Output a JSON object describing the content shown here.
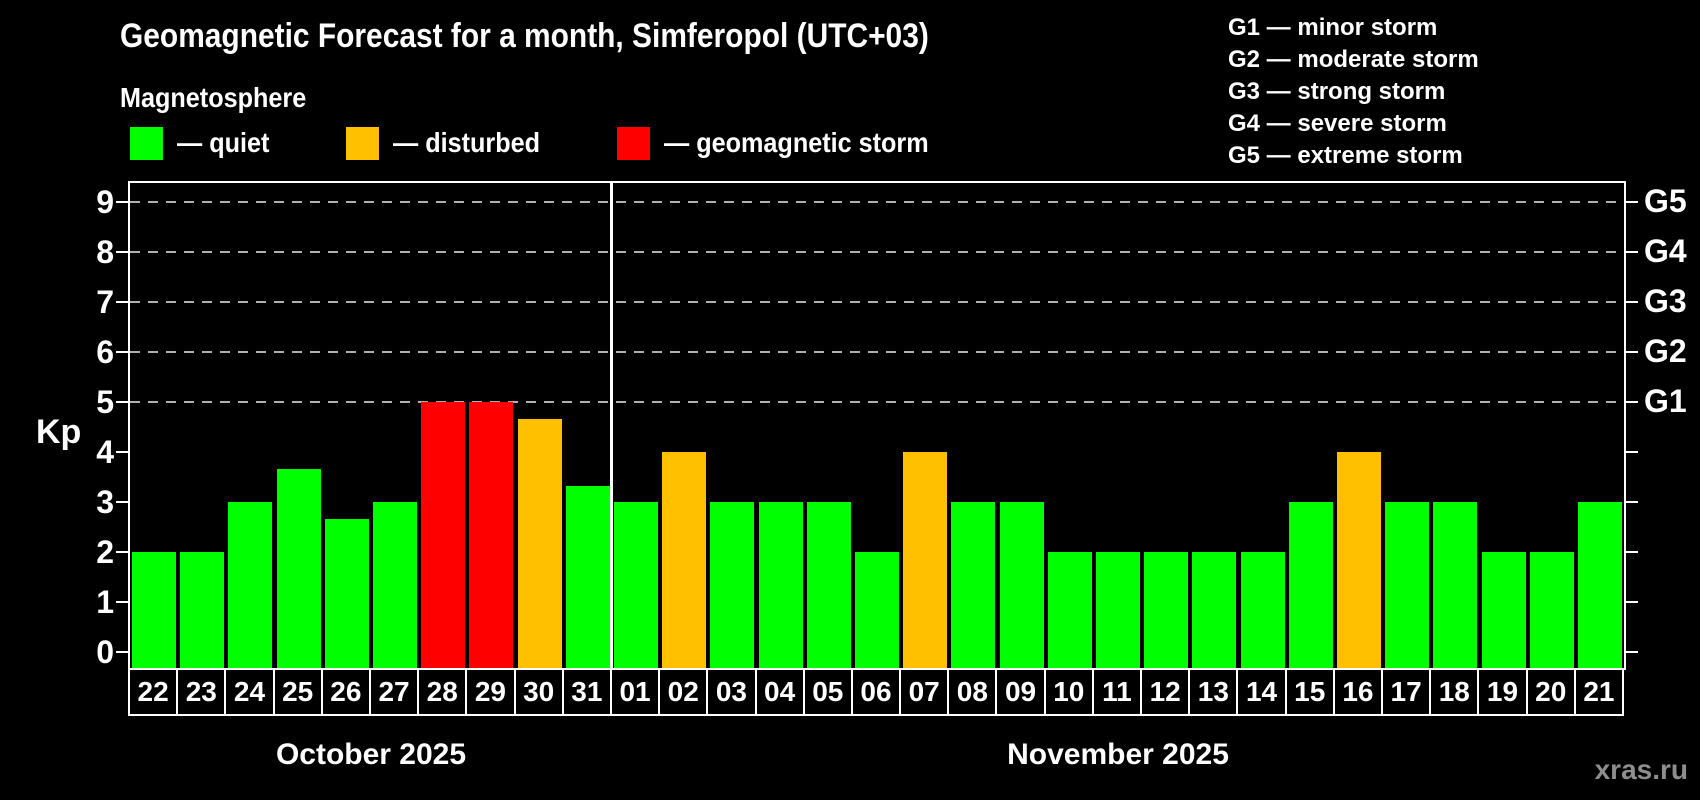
{
  "title": "Geomagnetic Forecast for a month, Simferopol (UTC+03)",
  "subtitle": "Magnetosphere",
  "status_legend": [
    {
      "key": "quiet",
      "label": "— quiet"
    },
    {
      "key": "disturbed",
      "label": "— disturbed"
    },
    {
      "key": "storm",
      "label": "— geomagnetic storm"
    }
  ],
  "g_legend": [
    "G1 — minor storm",
    "G2 — moderate storm",
    "G3 — strong storm",
    "G4 — severe storm",
    "G5 — extreme storm"
  ],
  "watermark": "xras.ru",
  "colors": {
    "background": "#000000",
    "quiet": "#00ff00",
    "disturbed": "#ffc000",
    "storm": "#ff0000",
    "grid": "#b0b0b0",
    "axis": "#ffffff",
    "watermark": "#8e8e8e"
  },
  "chart_data": {
    "type": "bar",
    "title": "Geomagnetic Forecast for a month, Simferopol (UTC+03)",
    "xlabel": "",
    "ylabel": "Kp",
    "ylim": [
      0,
      9.4
    ],
    "grid": "dashed horizontal at Kp 5-9",
    "y_ticks": [
      0,
      1,
      2,
      3,
      4,
      5,
      6,
      7,
      8,
      9
    ],
    "gridlines_at": [
      5,
      6,
      7,
      8,
      9
    ],
    "g_scale": [
      {
        "kp": 5,
        "label": "G1"
      },
      {
        "kp": 6,
        "label": "G2"
      },
      {
        "kp": 7,
        "label": "G3"
      },
      {
        "kp": 8,
        "label": "G4"
      },
      {
        "kp": 9,
        "label": "G5"
      }
    ],
    "categories": [
      "22",
      "23",
      "24",
      "25",
      "26",
      "27",
      "28",
      "29",
      "30",
      "31",
      "01",
      "02",
      "03",
      "04",
      "05",
      "06",
      "07",
      "08",
      "09",
      "10",
      "11",
      "12",
      "13",
      "14",
      "15",
      "16",
      "17",
      "18",
      "19",
      "20",
      "21"
    ],
    "values": [
      2,
      2,
      3,
      3.67,
      2.67,
      3,
      5,
      5,
      4.67,
      3.33,
      3,
      4,
      3,
      3,
      3,
      2,
      4,
      3,
      3,
      2,
      2,
      2,
      2,
      2,
      3,
      4,
      3,
      3,
      2,
      2,
      3
    ],
    "statuses": [
      "quiet",
      "quiet",
      "quiet",
      "quiet",
      "quiet",
      "quiet",
      "storm",
      "storm",
      "disturbed",
      "quiet",
      "quiet",
      "disturbed",
      "quiet",
      "quiet",
      "quiet",
      "quiet",
      "disturbed",
      "quiet",
      "quiet",
      "quiet",
      "quiet",
      "quiet",
      "quiet",
      "quiet",
      "quiet",
      "disturbed",
      "quiet",
      "quiet",
      "quiet",
      "quiet",
      "quiet"
    ],
    "months": [
      {
        "label": "October 2025",
        "days": 10
      },
      {
        "label": "November 2025",
        "days": 21
      }
    ]
  }
}
